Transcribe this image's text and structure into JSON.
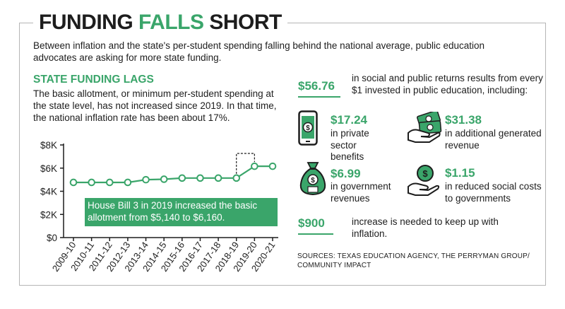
{
  "title": {
    "part1": "FUNDING",
    "part2": "FALLS",
    "part3": "SHORT"
  },
  "subtitle": "Between inflation and the state's per-student spending falling behind the national average, public education advocates are asking for more state funding.",
  "section": {
    "heading": "STATE FUNDING LAGS",
    "description": "The basic allotment, or minimum per-student spending at the state level, has not increased since 2019. In that time, the national inflation rate has been about 17%."
  },
  "chart_data": {
    "type": "line",
    "categories": [
      "2009-10",
      "2010-11",
      "2011-12",
      "2012-13",
      "2013-14",
      "2014-15",
      "2015-16",
      "2016-17",
      "2017-18",
      "2018-19",
      "2019-20",
      "2020-21"
    ],
    "values": [
      4765,
      4765,
      4765,
      4765,
      5000,
      5040,
      5140,
      5140,
      5140,
      5140,
      6160,
      6160
    ],
    "ylim": [
      0,
      8000
    ],
    "yticks": [
      0,
      2000,
      4000,
      6000,
      8000
    ],
    "ytick_labels": [
      "$0",
      "$2K",
      "$4K",
      "$6K",
      "$8K"
    ],
    "grid": false,
    "annotation": "House Bill 3 in 2019 increased the basic allotment from $5,140 to $6,160.",
    "line_color": "#3aa56a",
    "annotation_bg": "#3aa56a"
  },
  "returns": {
    "total_value": "$56.76",
    "total_text": "in social and public returns results from every $1 invested in public education, including:",
    "items": [
      {
        "icon": "phone-dollar-icon",
        "value": "$17.24",
        "text": "in private sector benefits"
      },
      {
        "icon": "hand-money-icon",
        "value": "$31.38",
        "text": "in additional generated revenue"
      },
      {
        "icon": "money-bag-icon",
        "value": "$6.99",
        "text": "in government revenues"
      },
      {
        "icon": "hand-coin-icon",
        "value": "$1.15",
        "text": "in reduced social costs to governments"
      }
    ],
    "inflation_value": "$900",
    "inflation_text": "increase is needed to keep up with inflation."
  },
  "sources": "SOURCES: TEXAS EDUCATION AGENCY, THE PERRYMAN GROUP/ COMMUNITY IMPACT",
  "colors": {
    "accent": "#3aa56a",
    "text": "#1d1d1d"
  }
}
